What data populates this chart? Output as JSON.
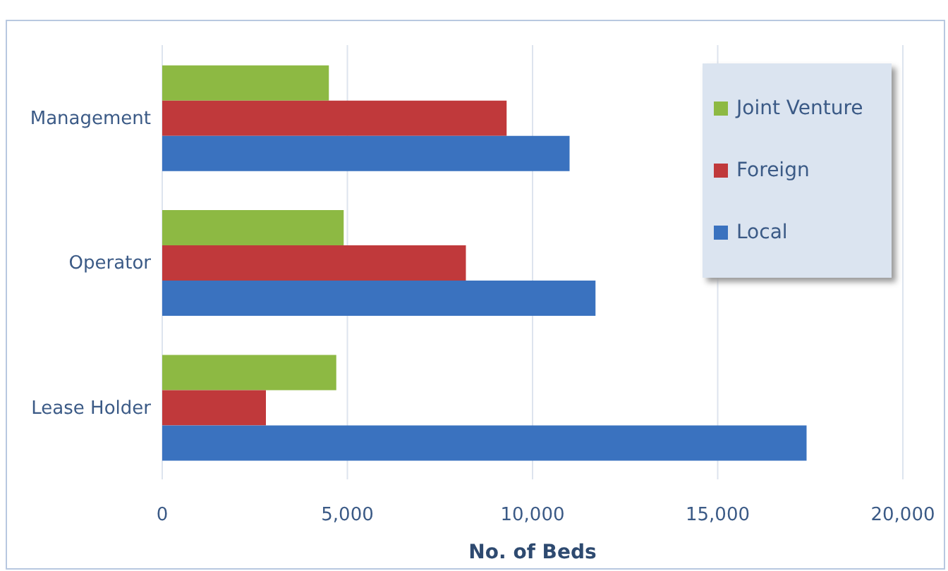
{
  "chart_data": {
    "type": "bar",
    "orientation": "horizontal",
    "categories": [
      "Management",
      "Operator",
      "Lease Holder"
    ],
    "series": [
      {
        "name": "Joint Venture",
        "color": "#8db943",
        "values": [
          4500,
          4900,
          4700
        ]
      },
      {
        "name": "Foreign",
        "color": "#c0393b",
        "values": [
          9300,
          8200,
          2800
        ]
      },
      {
        "name": "Local",
        "color": "#3a72bf",
        "values": [
          11000,
          11700,
          17400
        ]
      }
    ],
    "xlim": [
      0,
      20000
    ],
    "xticks": [
      {
        "value": 0,
        "label": "0"
      },
      {
        "value": 5000,
        "label": "5,000"
      },
      {
        "value": 10000,
        "label": "10,000"
      },
      {
        "value": 15000,
        "label": "15,000"
      },
      {
        "value": 20000,
        "label": "20,000"
      }
    ],
    "xlabel": "No. of Beds",
    "grid": "x",
    "legend": "top right"
  }
}
